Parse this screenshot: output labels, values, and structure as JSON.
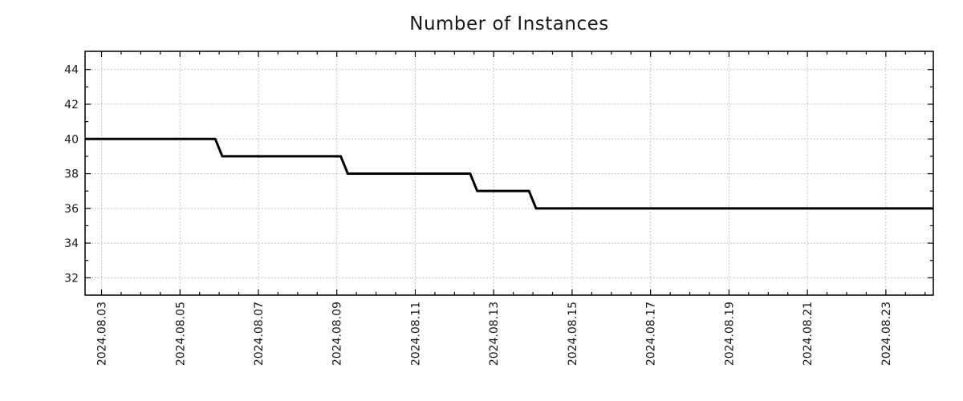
{
  "page": {
    "background": "#ffffff"
  },
  "chart_data": {
    "type": "line",
    "subtype": "step",
    "title": "Number of Instances",
    "xlabel": "",
    "ylabel": "",
    "legend": "none",
    "grid": "dotted gridlines at major ticks only",
    "line": {
      "color": "#000000",
      "width": 3
    },
    "x_axis": {
      "tick_labels": [
        "2024.08.03",
        "2024.08.05",
        "2024.08.07",
        "2024.08.09",
        "2024.08.11",
        "2024.08.13",
        "2024.08.15",
        "2024.08.17",
        "2024.08.19",
        "2024.08.21",
        "2024.08.23"
      ],
      "tick_offsets_days": [
        0,
        2,
        4,
        6,
        8,
        10,
        12,
        14,
        16,
        18,
        20
      ],
      "offset_origin": "2024.08.03",
      "range_days": [
        -0.42,
        21.21
      ],
      "minor_tick_step_days": 0.5,
      "label_rotation_deg": -90
    },
    "y_axis": {
      "tick_labels": [
        "32",
        "34",
        "36",
        "38",
        "40",
        "42",
        "44"
      ],
      "tick_values": [
        32,
        34,
        36,
        38,
        40,
        42,
        44
      ],
      "range": [
        31.0,
        45.05
      ],
      "minor_tick_step": 1
    },
    "series": [
      {
        "name": "number-of-instances",
        "points": [
          {
            "x_days": -0.42,
            "y": 40
          },
          {
            "x_days": 2.9,
            "y": 40
          },
          {
            "x_days": 3.08,
            "y": 39
          },
          {
            "x_days": 6.1,
            "y": 39
          },
          {
            "x_days": 6.28,
            "y": 38
          },
          {
            "x_days": 9.4,
            "y": 38
          },
          {
            "x_days": 9.58,
            "y": 37
          },
          {
            "x_days": 10.9,
            "y": 37
          },
          {
            "x_days": 11.08,
            "y": 36
          },
          {
            "x_days": 21.21,
            "y": 36
          }
        ],
        "value_timeline": [
          {
            "value": 40,
            "until": "2024.08.06"
          },
          {
            "value": 39,
            "until": "2024.08.09"
          },
          {
            "value": 38,
            "until": "2024.08.12/13"
          },
          {
            "value": 37,
            "until": "2024.08.14"
          },
          {
            "value": 36,
            "until": "chart end (~2024.08.24)"
          }
        ]
      }
    ],
    "colors": {
      "grid": "#b0b0b0",
      "axis": "#000000",
      "text": "#1a1a1a",
      "series": "#000000"
    }
  }
}
